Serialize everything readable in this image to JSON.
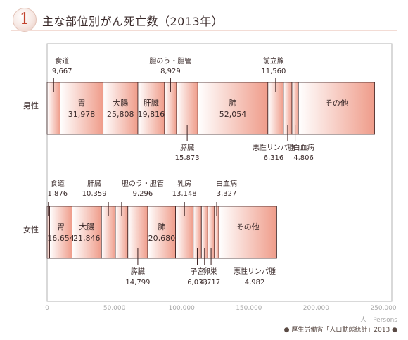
{
  "header": {
    "number": "1",
    "title": "主な部位別がん死亡数（2013年）"
  },
  "chart_data": {
    "type": "bar",
    "stacked": true,
    "orientation": "horizontal",
    "xlim": [
      0,
      250000
    ],
    "x_ticks": [
      {
        "value": 0,
        "label": "0"
      },
      {
        "value": 50000,
        "label": "50,000"
      },
      {
        "value": 100000,
        "label": "100,000"
      },
      {
        "value": 150000,
        "label": "150,000"
      },
      {
        "value": 200000,
        "label": "200,000"
      },
      {
        "value": 250000,
        "label": "250,000"
      }
    ],
    "x_unit": "人　Persons",
    "source": "● 厚生労働省「人口動態統計」2013 ●",
    "rows": [
      {
        "name": "男性",
        "segments": [
          {
            "name": "食道",
            "value_label": "9,667",
            "value": 9667,
            "label_pos": "above",
            "inside": false
          },
          {
            "name": "胃",
            "value_label": "31,978",
            "value": 31978,
            "inside": true
          },
          {
            "name": "大腸",
            "value_label": "25,808",
            "value": 25808,
            "inside": true
          },
          {
            "name": "肝臓",
            "value_label": "19,816",
            "value": 19816,
            "inside": true
          },
          {
            "name": "胆のう・胆管",
            "value_label": "8,929",
            "value": 8929,
            "label_pos": "above",
            "inside": false
          },
          {
            "name": "膵臓",
            "value_label": "15,873",
            "value": 15873,
            "label_pos": "below",
            "inside": false
          },
          {
            "name": "肺",
            "value_label": "52,054",
            "value": 52054,
            "inside": true
          },
          {
            "name": "前立腺",
            "value_label": "11,560",
            "value": 11560,
            "label_pos": "above",
            "inside": false
          },
          {
            "name": "悪性リンパ腫",
            "value_label": "6,316",
            "value": 6316,
            "label_pos": "below",
            "inside": false
          },
          {
            "name": "白血病",
            "value_label": "4,806",
            "value": 4806,
            "label_pos": "below",
            "inside": false
          },
          {
            "name": "その他",
            "value_label": "",
            "value": 56692,
            "inside": true
          }
        ]
      },
      {
        "name": "女性",
        "segments": [
          {
            "name": "食道",
            "value_label": "1,876",
            "value": 1876,
            "label_pos": "above",
            "inside": false
          },
          {
            "name": "胃",
            "value_label": "16,654",
            "value": 16654,
            "inside": true
          },
          {
            "name": "大腸",
            "value_label": "21,846",
            "value": 21846,
            "inside": true
          },
          {
            "name": "肝臓",
            "value_label": "10,359",
            "value": 10359,
            "label_pos": "above",
            "inside": false
          },
          {
            "name": "胆のう・胆管",
            "value_label": "9,296",
            "value": 9296,
            "label_pos": "above",
            "inside": false
          },
          {
            "name": "膵臓",
            "value_label": "14,799",
            "value": 14799,
            "label_pos": "below",
            "inside": false
          },
          {
            "name": "肺",
            "value_label": "20,680",
            "value": 20680,
            "inside": true
          },
          {
            "name": "乳房",
            "value_label": "13,148",
            "value": 13148,
            "label_pos": "above",
            "inside": false
          },
          {
            "name": "子宮",
            "value_label": "6,033",
            "value": 6033,
            "label_pos": "below",
            "inside": false
          },
          {
            "name": "卵巣",
            "value_label": "4,717",
            "value": 4717,
            "label_pos": "below",
            "inside": false
          },
          {
            "name": "悪性リンパ腫",
            "value_label": "4,982",
            "value": 4982,
            "label_pos": "below",
            "inside": false
          },
          {
            "name": "白血病",
            "value_label": "3,327",
            "value": 3327,
            "label_pos": "above",
            "inside": false
          },
          {
            "name": "その他",
            "value_label": "",
            "value": 43000,
            "inside": true
          }
        ]
      }
    ],
    "colors": {
      "bar_stroke": "#3b2020",
      "gradient_light": "#ffffff",
      "gradient_dark": "#ef9c8a",
      "leader": "#3b2020",
      "axis_text": "#a9a9a9",
      "frame": "#b3b3b3"
    }
  }
}
